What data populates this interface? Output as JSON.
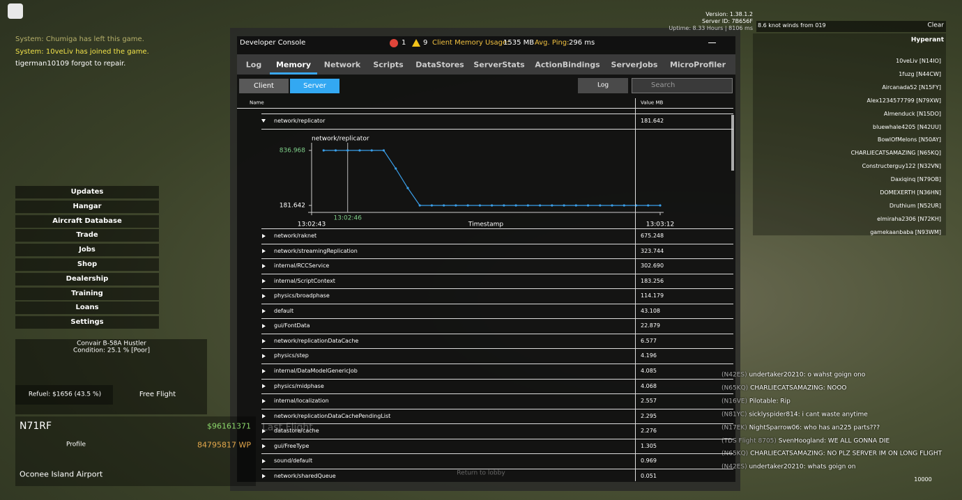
{
  "header": {
    "version": "Version: 1.38.1.2",
    "server_id": "Server ID: 7B656F",
    "uptime": "Uptime: 8.33 Hours | 8106 ms"
  },
  "system_chat": [
    "System: Chumiga has left this game.",
    "System: 10veLiv has joined the game.",
    "tigerman10109 forgot to repair."
  ],
  "menu": [
    "Updates",
    "Hangar",
    "Aircraft Database",
    "Trade",
    "Jobs",
    "Shop",
    "Dealership",
    "Training",
    "Loans",
    "Settings"
  ],
  "aircraft": {
    "name": "Convair B-58A Hustler",
    "condition": "Condition: 25.1 % [Poor]",
    "refuel": "Refuel: $1656 (43.5 %)",
    "free_flight": "Free Flight"
  },
  "status": {
    "callsign": "N71RF",
    "money": "$96161371",
    "profile": "Profile",
    "wp": "84795817 WP",
    "airport": "Oconee Island Airport",
    "last_flight": "Last Flight",
    "return": "Return to lobby",
    "altitude": "10000"
  },
  "weather": {
    "wind": "8.6 knot winds from 019",
    "sky": "Clear",
    "server": "Hyperant"
  },
  "players": [
    "10veLiv [N14IO]",
    "1fuzg [N44CW]",
    "Aircanada52 [N15FY]",
    "Alex1234577799 [N79XW]",
    "Almenduck [N15DO]",
    "bluewhale4205 [N42UU]",
    "BowlOfMelons [N50AY]",
    "CHARLIECATSAMAZING [N65KQ]",
    "Constructerguy122 [N32VN]",
    "Daxiqinq [N79OB]",
    "DOMEXERTH [N36HN]",
    "Druthium [N52UR]",
    "elmiraha2306 [N72KH]",
    "gamekaanbaba [N93WM]"
  ],
  "chat": [
    {
      "tag": "(N42ES)",
      "name": "undertaker20210:",
      "text": "o wahst goign ono"
    },
    {
      "tag": "(N65KQ)",
      "name": "CHARLIECATSAMAZING:",
      "text": "NOOO"
    },
    {
      "tag": "(N16VE)",
      "name": "Pilotable:",
      "text": "Rip"
    },
    {
      "tag": "(N81YC)",
      "name": "sicklyspider814:",
      "text": "i cant waste anytime"
    },
    {
      "tag": "(N17EK)",
      "name": "NightSparrow06:",
      "text": "who has an225 parts???"
    },
    {
      "tag": "(TDS Flight 8705)",
      "name": "SvenHoogland:",
      "text": "WE ALL GONNA DIE"
    },
    {
      "tag": "(N65KQ)",
      "name": "CHARLIECATSAMAZING:",
      "text": "NO PLZ SERVER IM ON LONG FLIGHT"
    },
    {
      "tag": "(N42ES)",
      "name": "undertaker20210:",
      "text": "whats goign on"
    }
  ],
  "console": {
    "title": "Developer Console",
    "errors": "1",
    "warnings": "9",
    "memory_label": "Client Memory Usage:",
    "memory": "1535 MB",
    "ping_label": "Avg. Ping:",
    "ping": "296 ms",
    "tabs": [
      "Log",
      "Memory",
      "Network",
      "Scripts",
      "DataStores",
      "ServerStats",
      "ActionBindings",
      "ServerJobs",
      "MicroProfiler"
    ],
    "active_tab": 1,
    "subtabs": [
      "Client",
      "Server"
    ],
    "active_subtab": 1,
    "log_button": "Log",
    "search": "Search",
    "columns": [
      "Name",
      "Value MB"
    ],
    "expanded": {
      "name": "network/replicator",
      "value": "181.642"
    },
    "chart": {
      "type": "line",
      "title": "network/replicator",
      "xlabel": "Timestamp",
      "x": [
        1,
        2,
        3,
        4,
        5,
        6,
        7,
        8,
        9,
        10,
        11,
        12,
        13,
        14,
        15,
        16,
        17,
        18,
        19,
        20,
        21,
        22,
        23,
        24,
        25,
        26,
        27,
        28,
        29
      ],
      "values": [
        836.968,
        836.968,
        836.968,
        836.968,
        836.968,
        836.968,
        621,
        389,
        181.642,
        181.642,
        181.642,
        181.642,
        181.642,
        181.642,
        181.642,
        181.642,
        181.642,
        181.642,
        181.642,
        181.642,
        181.642,
        181.642,
        181.642,
        181.642,
        181.642,
        181.642,
        181.642,
        181.642,
        181.642
      ],
      "color": "#3a9ee8",
      "xlim": [
        0,
        29
      ],
      "xticks": [
        {
          "value": 0,
          "label": "13:02:43"
        },
        {
          "value": 29,
          "label": "13:03:12"
        }
      ],
      "cursor": {
        "value": 3,
        "label": "13:02:46"
      },
      "ylim": [
        181.642,
        836.968
      ],
      "yticks": [
        181.642,
        836.968
      ]
    },
    "rows": [
      [
        "network/raknet",
        "675.248"
      ],
      [
        "network/streamingReplication",
        "323.744"
      ],
      [
        "internal/RCCService",
        "302.690"
      ],
      [
        "internal/ScriptContext",
        "183.256"
      ],
      [
        "physics/broadphase",
        "114.179"
      ],
      [
        "default",
        "43.108"
      ],
      [
        "gui/FontData",
        "22.879"
      ],
      [
        "network/replicationDataCache",
        "6.577"
      ],
      [
        "physics/step",
        "4.196"
      ],
      [
        "internal/DataModelGenericJob",
        "4.085"
      ],
      [
        "physics/midphase",
        "4.068"
      ],
      [
        "internal/localization",
        "2.557"
      ],
      [
        "network/replicationDataCachePendingList",
        "2.295"
      ],
      [
        "datastore/cache",
        "2.276"
      ],
      [
        "gui/FreeType",
        "1.305"
      ],
      [
        "sound/default",
        "0.969"
      ],
      [
        "network/sharedQueue",
        "0.051"
      ]
    ]
  }
}
